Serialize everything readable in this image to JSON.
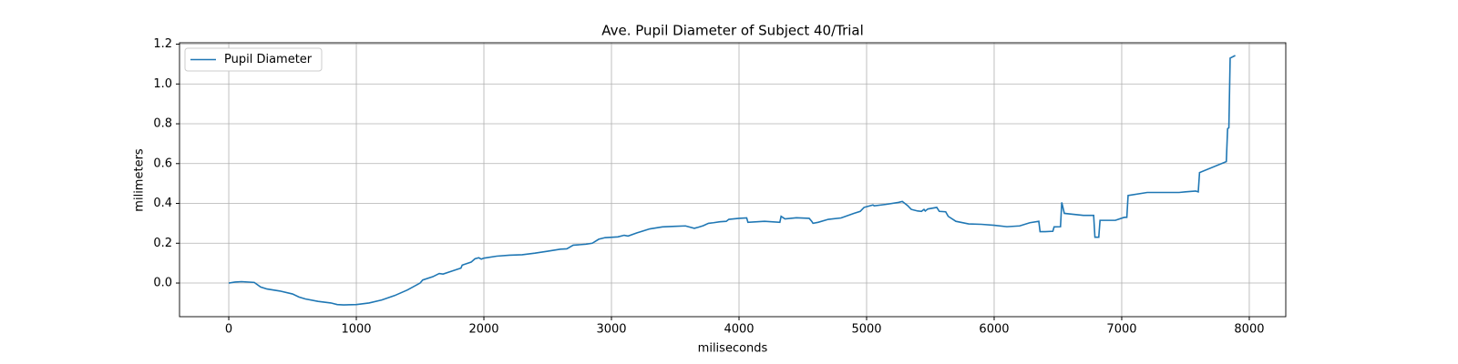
{
  "chart_data": {
    "type": "line",
    "title": "Ave. Pupil Diameter of Subject 40/Trial",
    "x_label": "miliseconds",
    "y_label": "milimeters",
    "x": [
      0,
      50,
      100,
      200,
      250,
      300,
      400,
      500,
      550,
      600,
      700,
      800,
      850,
      900,
      1000,
      1100,
      1200,
      1300,
      1400,
      1500,
      1520,
      1600,
      1650,
      1680,
      1750,
      1820,
      1830,
      1900,
      1930,
      1960,
      1980,
      2000,
      2100,
      2200,
      2300,
      2400,
      2500,
      2600,
      2650,
      2700,
      2800,
      2850,
      2900,
      2950,
      3050,
      3100,
      3130,
      3200,
      3300,
      3400,
      3500,
      3580,
      3650,
      3680,
      3720,
      3760,
      3800,
      3850,
      3900,
      3920,
      4000,
      4060,
      4070,
      4200,
      4320,
      4330,
      4360,
      4450,
      4550,
      4570,
      4580,
      4620,
      4700,
      4800,
      4900,
      4950,
      4980,
      5050,
      5060,
      5150,
      5250,
      5280,
      5320,
      5350,
      5400,
      5430,
      5450,
      5460,
      5480,
      5550,
      5570,
      5620,
      5640,
      5700,
      5800,
      5900,
      6000,
      6100,
      6200,
      6280,
      6350,
      6360,
      6400,
      6460,
      6470,
      6520,
      6530,
      6550,
      6700,
      6780,
      6790,
      6820,
      6830,
      6950,
      7020,
      7040,
      7050,
      7200,
      7450,
      7500,
      7580,
      7600,
      7610,
      7820,
      7830,
      7840,
      7850,
      7890
    ],
    "series": [
      {
        "name": "Pupil Diameter",
        "color": "#1f77b4",
        "values": [
          0.0,
          0.005,
          0.007,
          0.003,
          -0.02,
          -0.03,
          -0.04,
          -0.055,
          -0.07,
          -0.08,
          -0.092,
          -0.1,
          -0.108,
          -0.11,
          -0.108,
          -0.1,
          -0.085,
          -0.063,
          -0.035,
          0.0,
          0.015,
          0.032,
          0.048,
          0.045,
          0.06,
          0.075,
          0.09,
          0.105,
          0.122,
          0.127,
          0.12,
          0.125,
          0.135,
          0.14,
          0.142,
          0.15,
          0.16,
          0.17,
          0.172,
          0.19,
          0.195,
          0.2,
          0.22,
          0.228,
          0.232,
          0.24,
          0.236,
          0.252,
          0.272,
          0.282,
          0.285,
          0.287,
          0.275,
          0.28,
          0.288,
          0.3,
          0.303,
          0.308,
          0.31,
          0.32,
          0.325,
          0.327,
          0.305,
          0.31,
          0.305,
          0.335,
          0.322,
          0.328,
          0.325,
          0.31,
          0.3,
          0.305,
          0.32,
          0.327,
          0.35,
          0.36,
          0.38,
          0.392,
          0.388,
          0.395,
          0.405,
          0.41,
          0.39,
          0.37,
          0.362,
          0.36,
          0.37,
          0.362,
          0.372,
          0.38,
          0.36,
          0.358,
          0.335,
          0.31,
          0.297,
          0.295,
          0.29,
          0.283,
          0.287,
          0.303,
          0.31,
          0.258,
          0.258,
          0.26,
          0.282,
          0.283,
          0.405,
          0.35,
          0.34,
          0.34,
          0.23,
          0.23,
          0.315,
          0.315,
          0.33,
          0.33,
          0.44,
          0.455,
          0.455,
          0.458,
          0.462,
          0.458,
          0.555,
          0.61,
          0.775,
          0.78,
          1.13,
          1.143
        ]
      }
    ],
    "xlim": [
      -386,
      8286
    ],
    "xticks": [
      0,
      1000,
      2000,
      3000,
      4000,
      5000,
      6000,
      7000,
      8000
    ],
    "ylim": [
      -0.169,
      1.207
    ],
    "yticks": [
      {
        "value": 0,
        "label": "0.0"
      },
      0.2,
      0.4,
      0.6,
      0.8,
      {
        "value": 1,
        "label": "1.0"
      },
      1.2
    ],
    "grid": true,
    "legend": "upper left"
  }
}
